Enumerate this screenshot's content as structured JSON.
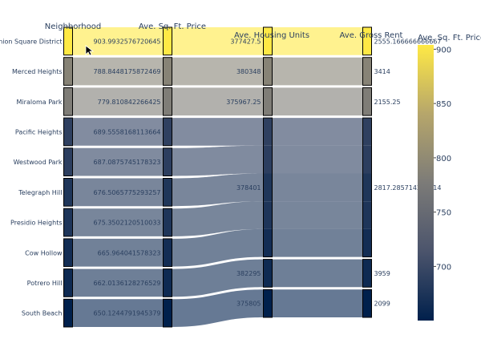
{
  "chart_data": {
    "type": "parallel_categories",
    "dimensions": [
      "Neighborhood",
      "Ave. Sq. Ft. Price",
      "Ave. Housing Units",
      "Ave. Gross Rent"
    ],
    "records": [
      {
        "neighborhood": "Union Square District",
        "sqft_price": "903.9932576720645",
        "housing_units": "377427.5",
        "gross_rent": "2555.166666666667"
      },
      {
        "neighborhood": "Merced Heights",
        "sqft_price": "788.8448175872469",
        "housing_units": "380348",
        "gross_rent": "3414"
      },
      {
        "neighborhood": "Miraloma Park",
        "sqft_price": "779.810842266425",
        "housing_units": "375967.25",
        "gross_rent": "2155.25"
      },
      {
        "neighborhood": "Pacific Heights",
        "sqft_price": "689.5558168113664",
        "housing_units": "378401",
        "gross_rent": "2817.285714285714"
      },
      {
        "neighborhood": "Westwood Park",
        "sqft_price": "687.0875745178323",
        "housing_units": "378401",
        "gross_rent": "2817.285714285714"
      },
      {
        "neighborhood": "Telegraph Hill",
        "sqft_price": "676.5065775293257",
        "housing_units": "378401",
        "gross_rent": "2817.285714285714"
      },
      {
        "neighborhood": "Presidio Heights",
        "sqft_price": "675.3502120510033",
        "housing_units": "378401",
        "gross_rent": "2817.285714285714"
      },
      {
        "neighborhood": "Cow Hollow",
        "sqft_price": "665.964041578323",
        "housing_units": "378401",
        "gross_rent": "2817.285714285714"
      },
      {
        "neighborhood": "Potrero Hill",
        "sqft_price": "662.0136128276529",
        "housing_units": "382295",
        "gross_rent": "3959"
      },
      {
        "neighborhood": "South Beach",
        "sqft_price": "650.1244791945379",
        "housing_units": "375805",
        "gross_rent": "2099"
      }
    ],
    "housing_units_order": [
      "377427.5",
      "380348",
      "375967.25",
      "378401",
      "382295",
      "375805"
    ],
    "gross_rent_order": [
      "2555.166666666667",
      "3414",
      "2155.25",
      "2817.285714285714",
      "3959",
      "2099"
    ],
    "colorbar": {
      "title": "Ave. Sq. Ft. Price",
      "ticks": [
        700,
        750,
        800,
        850,
        900
      ],
      "range": [
        650.1244791945379,
        903.9932576720645
      ],
      "colorscale": "cividis"
    }
  }
}
